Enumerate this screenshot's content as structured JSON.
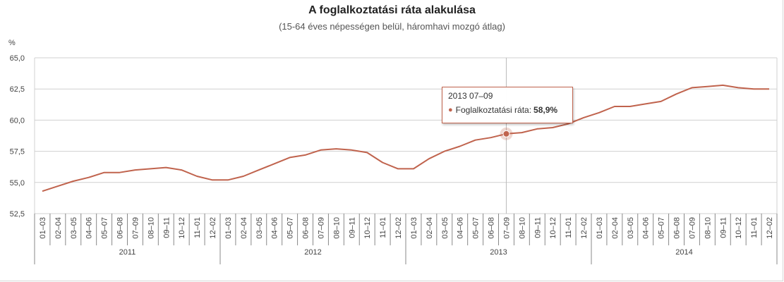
{
  "colors": {
    "series": "#c0634d",
    "grid": "#d0d0d0",
    "axis": "#888888"
  },
  "tooltip": {
    "date": "2013 07–09",
    "series_label": "Foglalkoztatási ráta:",
    "value": "58,9%",
    "marker_icon": "dot-icon"
  },
  "chart_data": {
    "type": "line",
    "title": "A foglalkoztatási ráta alakulása",
    "subtitle": "(15-64 éves népességen belül, háromhavi mozgó átlag)",
    "ylabel": "%",
    "ylim": [
      52.5,
      65.0
    ],
    "yticks": [
      "52,5",
      "55,0",
      "57,5",
      "60,0",
      "62,5",
      "65,0"
    ],
    "grid": true,
    "categories": [
      "01–03",
      "02–04",
      "03–05",
      "04–06",
      "05–07",
      "06–08",
      "07–09",
      "08–10",
      "09–11",
      "10–12",
      "11–01",
      "12–02",
      "01–03",
      "02–04",
      "03–05",
      "04–06",
      "05–07",
      "06–08",
      "07–09",
      "08–10",
      "09–11",
      "10–12",
      "11–01",
      "12–02",
      "01–03",
      "02–04",
      "03–05",
      "04–06",
      "05–07",
      "06–08",
      "07–09",
      "08–10",
      "09–11",
      "10–12",
      "11–01",
      "12–02",
      "01–03",
      "02–04",
      "03–05",
      "04–06",
      "05–07",
      "06–08",
      "07–09",
      "08–10",
      "09–11",
      "10–12",
      "11–01",
      "12–02"
    ],
    "years": [
      "2011",
      "2012",
      "2013",
      "2014"
    ],
    "series": [
      {
        "name": "Foglalkoztatási ráta",
        "values": [
          54.3,
          54.7,
          55.1,
          55.4,
          55.8,
          55.8,
          56.0,
          56.1,
          56.2,
          56.0,
          55.5,
          55.2,
          55.2,
          55.5,
          56.0,
          56.5,
          57.0,
          57.2,
          57.6,
          57.7,
          57.6,
          57.4,
          56.6,
          56.1,
          56.1,
          56.9,
          57.5,
          57.9,
          58.4,
          58.6,
          58.9,
          59.0,
          59.3,
          59.4,
          59.7,
          60.2,
          60.6,
          61.1,
          61.1,
          61.3,
          61.5,
          62.1,
          62.6,
          62.7,
          62.8,
          62.6,
          62.5,
          62.5
        ]
      }
    ],
    "highlight_index": 30
  }
}
